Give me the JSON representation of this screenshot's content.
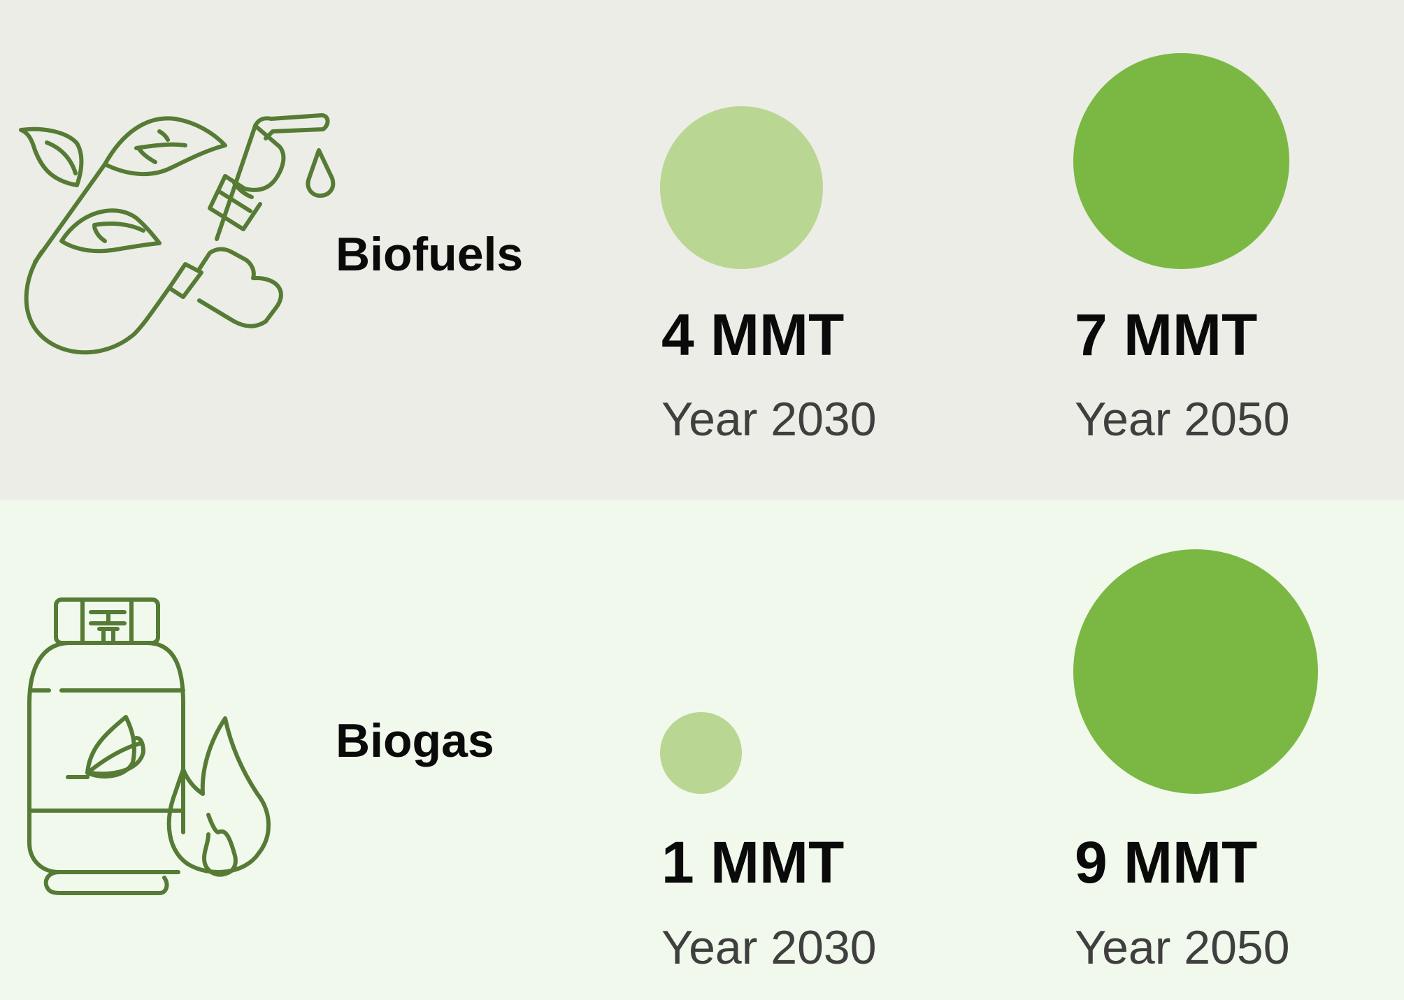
{
  "colors": {
    "band_backgrounds": [
      "#ecede6",
      "#f1f8ec"
    ],
    "series_2030": "#b9d693",
    "series_2050": "#7ab843",
    "icon_stroke": "#557b35",
    "value_text": "#0a0a0a",
    "year_text": "#3f3f3f"
  },
  "icons": [
    "biofuel-pump-leaves-icon",
    "biogas-cylinder-flame-icon"
  ],
  "chart_data": {
    "type": "bubble",
    "title": "",
    "categories": [
      "Biofuels",
      "Biogas"
    ],
    "unit": "MMT",
    "series": [
      {
        "name": "Year 2030",
        "values": [
          4,
          1
        ],
        "value_labels": [
          "4 MMT",
          "1 MMT"
        ],
        "year_labels": [
          "Year 2030",
          "Year 2030"
        ]
      },
      {
        "name": "Year 2050",
        "values": [
          7,
          9
        ],
        "value_labels": [
          "7 MMT",
          "9 MMT"
        ],
        "year_labels": [
          "Year 2050",
          "Year 2050"
        ]
      }
    ],
    "size_encoding": "bubble area proportional to value",
    "grid": false,
    "legend": "none"
  }
}
